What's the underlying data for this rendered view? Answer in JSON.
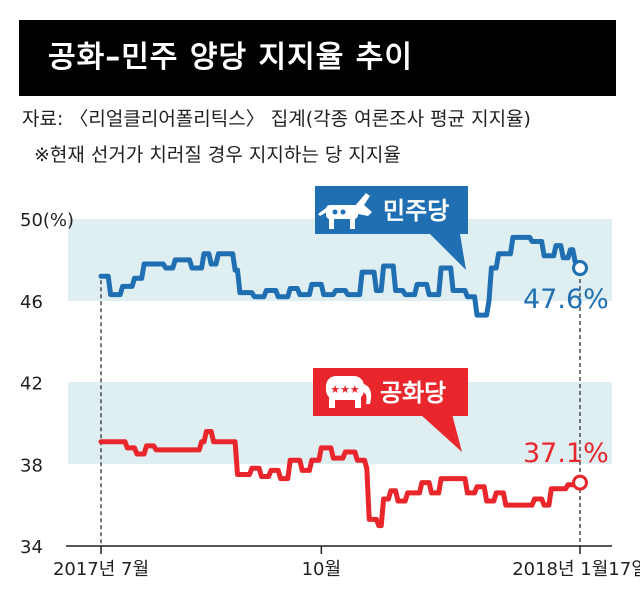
{
  "header": {
    "title": "공화–민주 양당 지지율 추이",
    "source": "자료: 〈리얼클리어폴리틱스〉 집계(각종 여론조사 평균 지지율)",
    "note": "※현재 선거가 치러질 경우 지지하는 당 지지율"
  },
  "chart_data": {
    "type": "line",
    "title": "공화–민주 양당 지지율 추이",
    "ylim": [
      34,
      50
    ],
    "yticks": [
      {
        "value": 50,
        "label": "50(%)"
      },
      {
        "value": 46,
        "label": "46"
      },
      {
        "value": 42,
        "label": "42"
      },
      {
        "value": 38,
        "label": "38"
      },
      {
        "value": 34,
        "label": "34"
      }
    ],
    "x_range": [
      "2017-07-01",
      "2018-01-17"
    ],
    "xticks": [
      {
        "date": "2017-07-01",
        "label": "2017년 7월"
      },
      {
        "date": "2017-10-01",
        "label": "10월"
      },
      {
        "date": "2018-01-17",
        "label": "2018년 1월17일"
      }
    ],
    "series": [
      {
        "name": "민주당",
        "color": "#1f6fb2",
        "icon": "donkey-icon",
        "end_label": "47.6%",
        "points": [
          [
            "2017-07-01",
            47.2
          ],
          [
            "2017-07-04",
            47.2
          ],
          [
            "2017-07-05",
            46.3
          ],
          [
            "2017-07-09",
            46.3
          ],
          [
            "2017-07-10",
            46.7
          ],
          [
            "2017-07-14",
            46.7
          ],
          [
            "2017-07-15",
            47.1
          ],
          [
            "2017-07-18",
            47.1
          ],
          [
            "2017-07-19",
            47.8
          ],
          [
            "2017-07-27",
            47.8
          ],
          [
            "2017-07-28",
            47.6
          ],
          [
            "2017-07-31",
            47.6
          ],
          [
            "2017-08-01",
            48.0
          ],
          [
            "2017-08-07",
            48.0
          ],
          [
            "2017-08-08",
            47.6
          ],
          [
            "2017-08-12",
            47.6
          ],
          [
            "2017-08-13",
            48.3
          ],
          [
            "2017-08-15",
            48.3
          ],
          [
            "2017-08-16",
            47.8
          ],
          [
            "2017-08-18",
            47.8
          ],
          [
            "2017-08-19",
            48.3
          ],
          [
            "2017-08-25",
            48.3
          ],
          [
            "2017-08-26",
            47.5
          ],
          [
            "2017-08-27",
            47.5
          ],
          [
            "2017-08-28",
            46.4
          ],
          [
            "2017-09-02",
            46.4
          ],
          [
            "2017-09-03",
            46.2
          ],
          [
            "2017-09-07",
            46.2
          ],
          [
            "2017-09-08",
            46.5
          ],
          [
            "2017-09-12",
            46.5
          ],
          [
            "2017-09-13",
            46.2
          ],
          [
            "2017-09-17",
            46.2
          ],
          [
            "2017-09-18",
            46.6
          ],
          [
            "2017-09-21",
            46.6
          ],
          [
            "2017-09-22",
            46.3
          ],
          [
            "2017-09-26",
            46.3
          ],
          [
            "2017-09-27",
            46.8
          ],
          [
            "2017-10-01",
            46.8
          ],
          [
            "2017-10-02",
            46.3
          ],
          [
            "2017-10-06",
            46.3
          ],
          [
            "2017-10-07",
            46.5
          ],
          [
            "2017-10-11",
            46.5
          ],
          [
            "2017-10-12",
            46.3
          ],
          [
            "2017-10-17",
            46.3
          ],
          [
            "2017-10-18",
            47.4
          ],
          [
            "2017-10-23",
            47.4
          ],
          [
            "2017-10-24",
            46.5
          ],
          [
            "2017-10-26",
            46.5
          ],
          [
            "2017-10-27",
            47.7
          ],
          [
            "2017-10-31",
            47.7
          ],
          [
            "2017-11-01",
            46.5
          ],
          [
            "2017-11-04",
            46.5
          ],
          [
            "2017-11-05",
            46.3
          ],
          [
            "2017-11-09",
            46.3
          ],
          [
            "2017-11-10",
            46.8
          ],
          [
            "2017-11-14",
            46.8
          ],
          [
            "2017-11-15",
            46.3
          ],
          [
            "2017-11-19",
            46.3
          ],
          [
            "2017-11-20",
            47.6
          ],
          [
            "2017-11-24",
            47.6
          ],
          [
            "2017-11-25",
            46.5
          ],
          [
            "2017-11-30",
            46.5
          ],
          [
            "2017-12-01",
            46.2
          ],
          [
            "2017-12-04",
            46.2
          ],
          [
            "2017-12-05",
            45.3
          ],
          [
            "2017-12-09",
            45.3
          ],
          [
            "2017-12-10",
            46.0
          ],
          [
            "2017-12-11",
            47.6
          ],
          [
            "2017-12-13",
            47.6
          ],
          [
            "2017-12-14",
            48.3
          ],
          [
            "2017-12-19",
            48.3
          ],
          [
            "2017-12-20",
            49.1
          ],
          [
            "2017-12-27",
            49.1
          ],
          [
            "2017-12-28",
            48.9
          ],
          [
            "2018-01-01",
            48.9
          ],
          [
            "2018-01-02",
            48.2
          ],
          [
            "2018-01-06",
            48.2
          ],
          [
            "2018-01-07",
            48.7
          ],
          [
            "2018-01-09",
            48.7
          ],
          [
            "2018-01-10",
            48.1
          ],
          [
            "2018-01-12",
            48.1
          ],
          [
            "2018-01-13",
            48.5
          ],
          [
            "2018-01-14",
            48.5
          ],
          [
            "2018-01-15",
            47.9
          ],
          [
            "2018-01-17",
            47.6
          ]
        ]
      },
      {
        "name": "공화당",
        "color": "#e8262b",
        "icon": "elephant-icon",
        "end_label": "37.1%",
        "points": [
          [
            "2017-07-01",
            39.1
          ],
          [
            "2017-07-11",
            39.1
          ],
          [
            "2017-07-12",
            38.8
          ],
          [
            "2017-07-15",
            38.8
          ],
          [
            "2017-07-16",
            38.5
          ],
          [
            "2017-07-19",
            38.5
          ],
          [
            "2017-07-20",
            38.9
          ],
          [
            "2017-07-23",
            38.9
          ],
          [
            "2017-07-24",
            38.7
          ],
          [
            "2017-08-11",
            38.7
          ],
          [
            "2017-08-12",
            39.1
          ],
          [
            "2017-08-13",
            39.1
          ],
          [
            "2017-08-14",
            39.6
          ],
          [
            "2017-08-16",
            39.6
          ],
          [
            "2017-08-17",
            39.1
          ],
          [
            "2017-08-26",
            39.1
          ],
          [
            "2017-08-27",
            37.5
          ],
          [
            "2017-09-01",
            37.5
          ],
          [
            "2017-09-02",
            37.8
          ],
          [
            "2017-09-05",
            37.8
          ],
          [
            "2017-09-06",
            37.4
          ],
          [
            "2017-09-09",
            37.4
          ],
          [
            "2017-09-10",
            37.7
          ],
          [
            "2017-09-13",
            37.7
          ],
          [
            "2017-09-14",
            37.3
          ],
          [
            "2017-09-17",
            37.3
          ],
          [
            "2017-09-18",
            38.2
          ],
          [
            "2017-09-22",
            38.2
          ],
          [
            "2017-09-23",
            37.7
          ],
          [
            "2017-09-26",
            37.7
          ],
          [
            "2017-09-27",
            38.2
          ],
          [
            "2017-09-30",
            38.2
          ],
          [
            "2017-10-01",
            38.8
          ],
          [
            "2017-10-05",
            38.8
          ],
          [
            "2017-10-06",
            38.3
          ],
          [
            "2017-10-10",
            38.3
          ],
          [
            "2017-10-11",
            38.6
          ],
          [
            "2017-10-15",
            38.6
          ],
          [
            "2017-10-16",
            38.2
          ],
          [
            "2017-10-19",
            38.2
          ],
          [
            "2017-10-20",
            37.8
          ],
          [
            "2017-10-21",
            35.3
          ],
          [
            "2017-10-24",
            35.3
          ],
          [
            "2017-10-25",
            35.0
          ],
          [
            "2017-10-26",
            35.0
          ],
          [
            "2017-10-27",
            36.3
          ],
          [
            "2017-10-29",
            36.3
          ],
          [
            "2017-10-30",
            36.7
          ],
          [
            "2017-11-01",
            36.7
          ],
          [
            "2017-11-02",
            36.2
          ],
          [
            "2017-11-05",
            36.2
          ],
          [
            "2017-11-06",
            36.6
          ],
          [
            "2017-11-11",
            36.6
          ],
          [
            "2017-11-12",
            37.1
          ],
          [
            "2017-11-15",
            37.1
          ],
          [
            "2017-11-16",
            36.6
          ],
          [
            "2017-11-19",
            36.6
          ],
          [
            "2017-11-20",
            37.3
          ],
          [
            "2017-11-30",
            37.3
          ],
          [
            "2017-12-01",
            36.6
          ],
          [
            "2017-12-04",
            36.6
          ],
          [
            "2017-12-05",
            36.9
          ],
          [
            "2017-12-08",
            36.9
          ],
          [
            "2017-12-09",
            36.2
          ],
          [
            "2017-12-12",
            36.2
          ],
          [
            "2017-12-13",
            36.6
          ],
          [
            "2017-12-16",
            36.6
          ],
          [
            "2017-12-17",
            36.0
          ],
          [
            "2017-12-28",
            36.0
          ],
          [
            "2017-12-29",
            36.3
          ],
          [
            "2018-01-01",
            36.3
          ],
          [
            "2018-01-02",
            36.0
          ],
          [
            "2018-01-04",
            36.0
          ],
          [
            "2018-01-05",
            36.8
          ],
          [
            "2018-01-11",
            36.8
          ],
          [
            "2018-01-12",
            37.0
          ],
          [
            "2018-01-15",
            37.0
          ],
          [
            "2018-01-17",
            37.1
          ]
        ]
      }
    ]
  }
}
